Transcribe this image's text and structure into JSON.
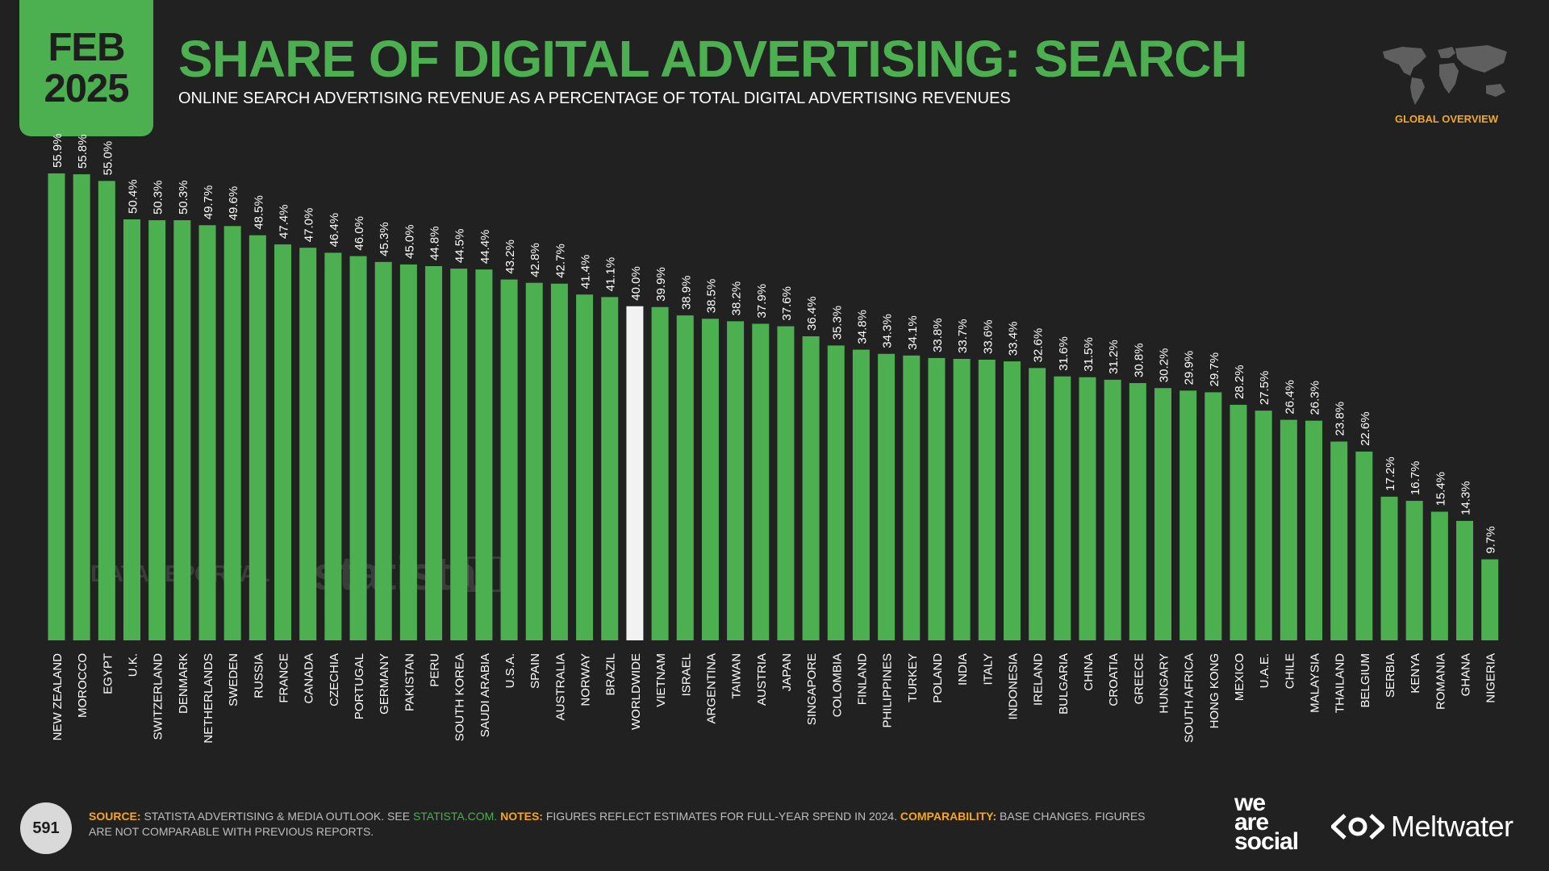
{
  "header": {
    "date_month": "FEB",
    "date_year": "2025",
    "title": "SHARE OF DIGITAL ADVERTISING: SEARCH",
    "subtitle": "ONLINE SEARCH ADVERTISING REVENUE AS A PERCENTAGE OF TOTAL DIGITAL ADVERTISING REVENUES",
    "region_label": "GLOBAL OVERVIEW"
  },
  "watermarks": {
    "datareportal": "DATAREPORTAL",
    "statista": "statista"
  },
  "colors": {
    "background": "#212121",
    "accent_green": "#4caf50",
    "highlight_bar": "#f2f2f2",
    "label_orange": "#f5a623"
  },
  "chart_data": {
    "type": "bar",
    "title": "SHARE OF DIGITAL ADVERTISING: SEARCH",
    "xlabel": "",
    "ylabel": "",
    "ylim": [
      0,
      60
    ],
    "grid": false,
    "value_suffix": "%",
    "highlight_category": "WORLDWIDE",
    "categories": [
      "NEW ZEALAND",
      "MOROCCO",
      "EGYPT",
      "U.K.",
      "SWITZERLAND",
      "DENMARK",
      "NETHERLANDS",
      "SWEDEN",
      "RUSSIA",
      "FRANCE",
      "CANADA",
      "CZECHIA",
      "PORTUGAL",
      "GERMANY",
      "PAKISTAN",
      "PERU",
      "SOUTH KOREA",
      "SAUDI ARABIA",
      "U.S.A.",
      "SPAIN",
      "AUSTRALIA",
      "NORWAY",
      "BRAZIL",
      "WORLDWIDE",
      "VIETNAM",
      "ISRAEL",
      "ARGENTINA",
      "TAIWAN",
      "AUSTRIA",
      "JAPAN",
      "SINGAPORE",
      "COLOMBIA",
      "FINLAND",
      "PHILIPPINES",
      "TURKEY",
      "POLAND",
      "INDIA",
      "ITALY",
      "INDONESIA",
      "IRELAND",
      "BULGARIA",
      "CHINA",
      "CROATIA",
      "GREECE",
      "HUNGARY",
      "SOUTH AFRICA",
      "HONG KONG",
      "MEXICO",
      "U.A.E.",
      "CHILE",
      "MALAYSIA",
      "THAILAND",
      "BELGIUM",
      "SERBIA",
      "KENYA",
      "ROMANIA",
      "GHANA",
      "NIGERIA"
    ],
    "values": [
      55.9,
      55.8,
      55.0,
      50.4,
      50.3,
      50.3,
      49.7,
      49.6,
      48.5,
      47.4,
      47.0,
      46.4,
      46.0,
      45.3,
      45.0,
      44.8,
      44.5,
      44.4,
      43.2,
      42.8,
      42.7,
      41.4,
      41.1,
      40.0,
      39.9,
      38.9,
      38.5,
      38.2,
      37.9,
      37.6,
      36.4,
      35.3,
      34.8,
      34.3,
      34.1,
      33.8,
      33.7,
      33.6,
      33.4,
      32.6,
      31.6,
      31.5,
      31.2,
      30.8,
      30.2,
      29.9,
      29.7,
      28.2,
      27.5,
      26.4,
      26.3,
      23.8,
      22.6,
      17.2,
      16.7,
      15.4,
      14.3,
      9.7
    ]
  },
  "footer": {
    "page_number": "591",
    "source_label": "SOURCE:",
    "source_text": "STATISTA ADVERTISING & MEDIA OUTLOOK. SEE",
    "source_link": "STATISTA.COM.",
    "notes_label": "NOTES:",
    "notes_text": "FIGURES REFLECT ESTIMATES FOR FULL-YEAR SPEND IN 2024.",
    "comparability_label": "COMPARABILITY:",
    "comparability_text": "BASE CHANGES. FIGURES ARE NOT COMPARABLE WITH PREVIOUS REPORTS."
  },
  "brands": {
    "was_line1": "we",
    "was_line2": "are",
    "was_line3": "social",
    "meltwater": "Meltwater"
  }
}
